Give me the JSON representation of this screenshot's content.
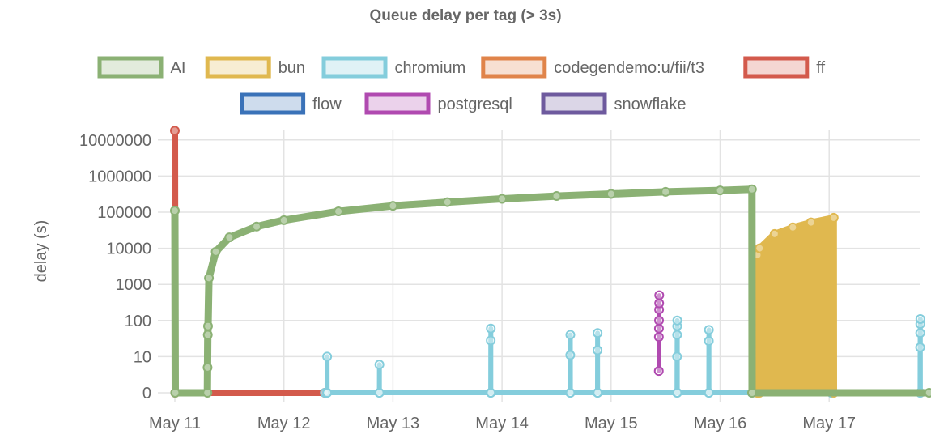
{
  "chart_data": {
    "type": "line",
    "title": "Queue delay per tag (> 3s)",
    "ylabel": "delay (s)",
    "xlabel": "",
    "yscale": "log",
    "y_ticks": [
      "0",
      "10",
      "100",
      "1000",
      "10000",
      "100000",
      "1000000",
      "10000000"
    ],
    "x_ticks": [
      "May 11",
      "May 12",
      "May 13",
      "May 14",
      "May 15",
      "May 16",
      "May 17"
    ],
    "xlim": [
      "May 10 22:00",
      "May 17 20:00"
    ],
    "grid": true,
    "legend_position": "top",
    "series": [
      {
        "name": "AI",
        "color": "#8bb174",
        "points": [
          [
            "May 11 00:00",
            110000
          ],
          [
            "May 11 00:05",
            0
          ],
          [
            "May 11 07:10",
            0
          ],
          [
            "May 11 07:12",
            5
          ],
          [
            "May 11 07:15",
            40
          ],
          [
            "May 11 07:18",
            70
          ],
          [
            "May 11 07:30",
            1500
          ],
          [
            "May 11 09:00",
            8000
          ],
          [
            "May 11 12:00",
            20000
          ],
          [
            "May 11 18:00",
            40000
          ],
          [
            "May 12 00:00",
            60000
          ],
          [
            "May 12 12:00",
            105000
          ],
          [
            "May 13 00:00",
            150000
          ],
          [
            "May 13 12:00",
            190000
          ],
          [
            "May 14 00:00",
            235000
          ],
          [
            "May 14 12:00",
            280000
          ],
          [
            "May 15 00:00",
            320000
          ],
          [
            "May 15 12:00",
            365000
          ],
          [
            "May 16 00:00",
            400000
          ],
          [
            "May 16 07:00",
            430000
          ],
          [
            "May 16 07:02",
            0
          ],
          [
            "May 17 22:00",
            0
          ]
        ]
      },
      {
        "name": "bun",
        "color": "#e0b84f",
        "points": [
          [
            "May 16 08:10",
            0
          ],
          [
            "May 16 08:12",
            6500
          ],
          [
            "May 16 08:14",
            0
          ],
          [
            "May 16 08:40",
            0
          ],
          [
            "May 16 08:42",
            10000
          ],
          [
            "May 16 12:00",
            25000
          ],
          [
            "May 16 16:00",
            38000
          ],
          [
            "May 16 20:00",
            52000
          ],
          [
            "May 17 01:00",
            70000
          ],
          [
            "May 17 01:02",
            0
          ]
        ]
      },
      {
        "name": "chromium",
        "color": "#84cddc",
        "points": [
          [
            "May 12 09:00",
            0
          ],
          [
            "May 12 09:30",
            0
          ],
          [
            "May 12 09:31",
            10
          ],
          [
            "May 12 09:32",
            0
          ],
          [
            "May 12 21:00",
            0
          ],
          [
            "May 12 21:01",
            6
          ],
          [
            "May 12 21:02",
            0
          ],
          [
            "May 13 21:30",
            0
          ],
          [
            "May 13 21:31",
            28
          ],
          [
            "May 13 21:32",
            60
          ],
          [
            "May 13 21:33",
            0
          ],
          [
            "May 14 15:00",
            0
          ],
          [
            "May 14 15:01",
            11
          ],
          [
            "May 14 15:02",
            40
          ],
          [
            "May 14 15:03",
            0
          ],
          [
            "May 14 21:00",
            0
          ],
          [
            "May 14 21:01",
            15
          ],
          [
            "May 14 21:02",
            45
          ],
          [
            "May 14 21:03",
            0
          ],
          [
            "May 15 14:30",
            0
          ],
          [
            "May 15 14:31",
            10
          ],
          [
            "May 15 14:32",
            40
          ],
          [
            "May 15 14:33",
            70
          ],
          [
            "May 15 14:34",
            100
          ],
          [
            "May 15 14:35",
            0
          ],
          [
            "May 15 21:30",
            0
          ],
          [
            "May 15 21:31",
            27
          ],
          [
            "May 15 21:32",
            55
          ],
          [
            "May 15 21:33",
            0
          ],
          [
            "May 16 07:00",
            0
          ],
          [
            "May 17 00:30",
            0
          ],
          [
            "May 17 00:31",
            14000
          ],
          [
            "May 17 00:32",
            0
          ],
          [
            "May 17 20:00",
            0
          ],
          [
            "May 17 20:01",
            18
          ],
          [
            "May 17 20:02",
            45
          ],
          [
            "May 17 20:03",
            80
          ],
          [
            "May 17 20:04",
            110
          ],
          [
            "May 17 20:05",
            0
          ]
        ]
      },
      {
        "name": "codegendemo:u/fii/t3",
        "color": "#e0844a",
        "points": []
      },
      {
        "name": "ff",
        "color": "#d35a4c",
        "points": [
          [
            "May 11 00:00",
            18000000
          ],
          [
            "May 11 00:05",
            0
          ],
          [
            "May 12 09:00",
            0
          ]
        ]
      },
      {
        "name": "flow",
        "color": "#3a72b8",
        "points": []
      },
      {
        "name": "postgresql",
        "color": "#b04ab0",
        "points": [
          [
            "May 15 10:30",
            4
          ],
          [
            "May 15 10:31",
            35
          ],
          [
            "May 15 10:32",
            60
          ],
          [
            "May 15 10:33",
            100
          ],
          [
            "May 15 10:34",
            200
          ],
          [
            "May 15 10:35",
            300
          ],
          [
            "May 15 10:36",
            500
          ]
        ]
      },
      {
        "name": "snowflake",
        "color": "#6e5a9e",
        "points": []
      }
    ]
  }
}
